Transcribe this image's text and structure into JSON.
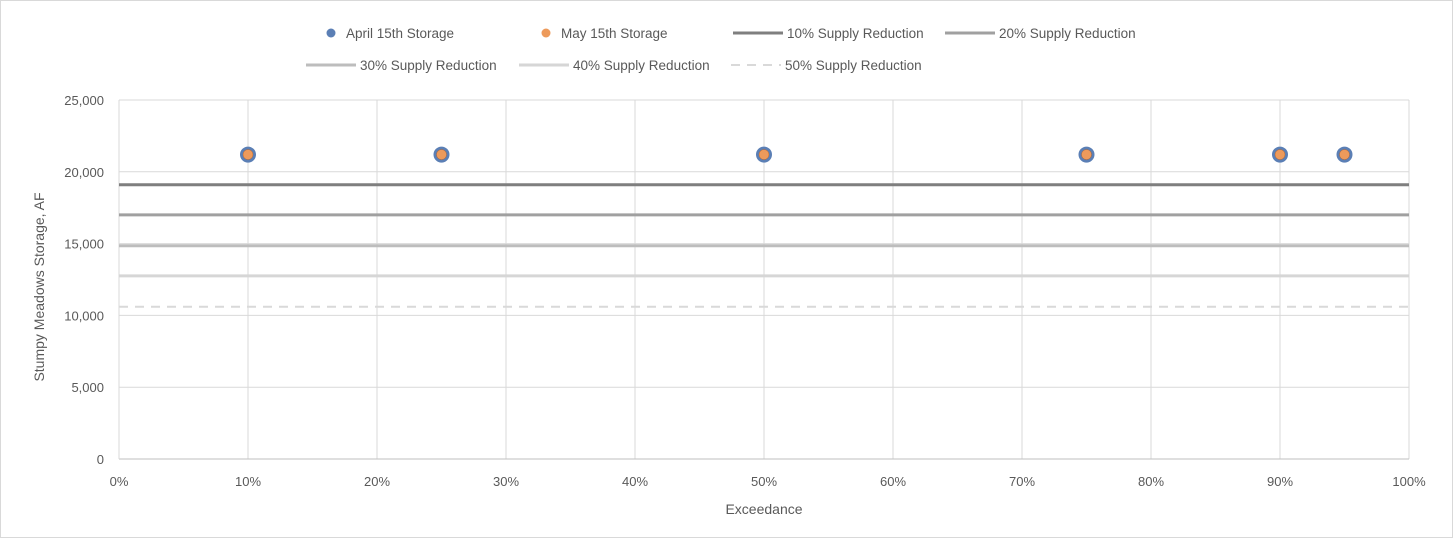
{
  "chart_data": {
    "type": "scatter",
    "title": "",
    "xlabel": "Exceedance",
    "ylabel": "Stumpy Meadows Storage, AF",
    "xlim": [
      0,
      100
    ],
    "ylim": [
      0,
      25000
    ],
    "x_ticks": [
      0,
      10,
      20,
      30,
      40,
      50,
      60,
      70,
      80,
      90,
      100
    ],
    "x_tick_labels": [
      "0%",
      "10%",
      "20%",
      "30%",
      "40%",
      "50%",
      "60%",
      "70%",
      "80%",
      "90%",
      "100%"
    ],
    "y_ticks": [
      0,
      5000,
      10000,
      15000,
      20000,
      25000
    ],
    "y_tick_labels": [
      "0",
      "5,000",
      "10,000",
      "15,000",
      "20,000",
      "25,000"
    ],
    "grid": true,
    "legend_position": "top",
    "series": [
      {
        "name": "April 15th Storage",
        "kind": "points",
        "color": "#5b7fb5",
        "x": [
          10,
          25,
          50,
          75,
          90,
          95
        ],
        "y": [
          21200,
          21200,
          21200,
          21200,
          21200,
          21200
        ]
      },
      {
        "name": "May 15th Storage",
        "kind": "points",
        "color": "#ed9a5b",
        "x": [
          10,
          25,
          50,
          75,
          90,
          95
        ],
        "y": [
          21200,
          21200,
          21200,
          21200,
          21200,
          21200
        ]
      },
      {
        "name": "10% Supply Reduction",
        "kind": "hline",
        "color": "#7f7f7f",
        "style": "solid",
        "y": 19100
      },
      {
        "name": "20% Supply Reduction",
        "kind": "hline",
        "color": "#a0a0a0",
        "style": "solid",
        "y": 17000
      },
      {
        "name": "30% Supply Reduction",
        "kind": "hline",
        "color": "#bdbdbd",
        "style": "solid",
        "y": 14850
      },
      {
        "name": "40% Supply Reduction",
        "kind": "hline",
        "color": "#d6d6d6",
        "style": "solid",
        "y": 12750
      },
      {
        "name": "50% Supply Reduction",
        "kind": "hline",
        "color": "#d9d9d9",
        "style": "dashed",
        "y": 10600
      }
    ]
  }
}
